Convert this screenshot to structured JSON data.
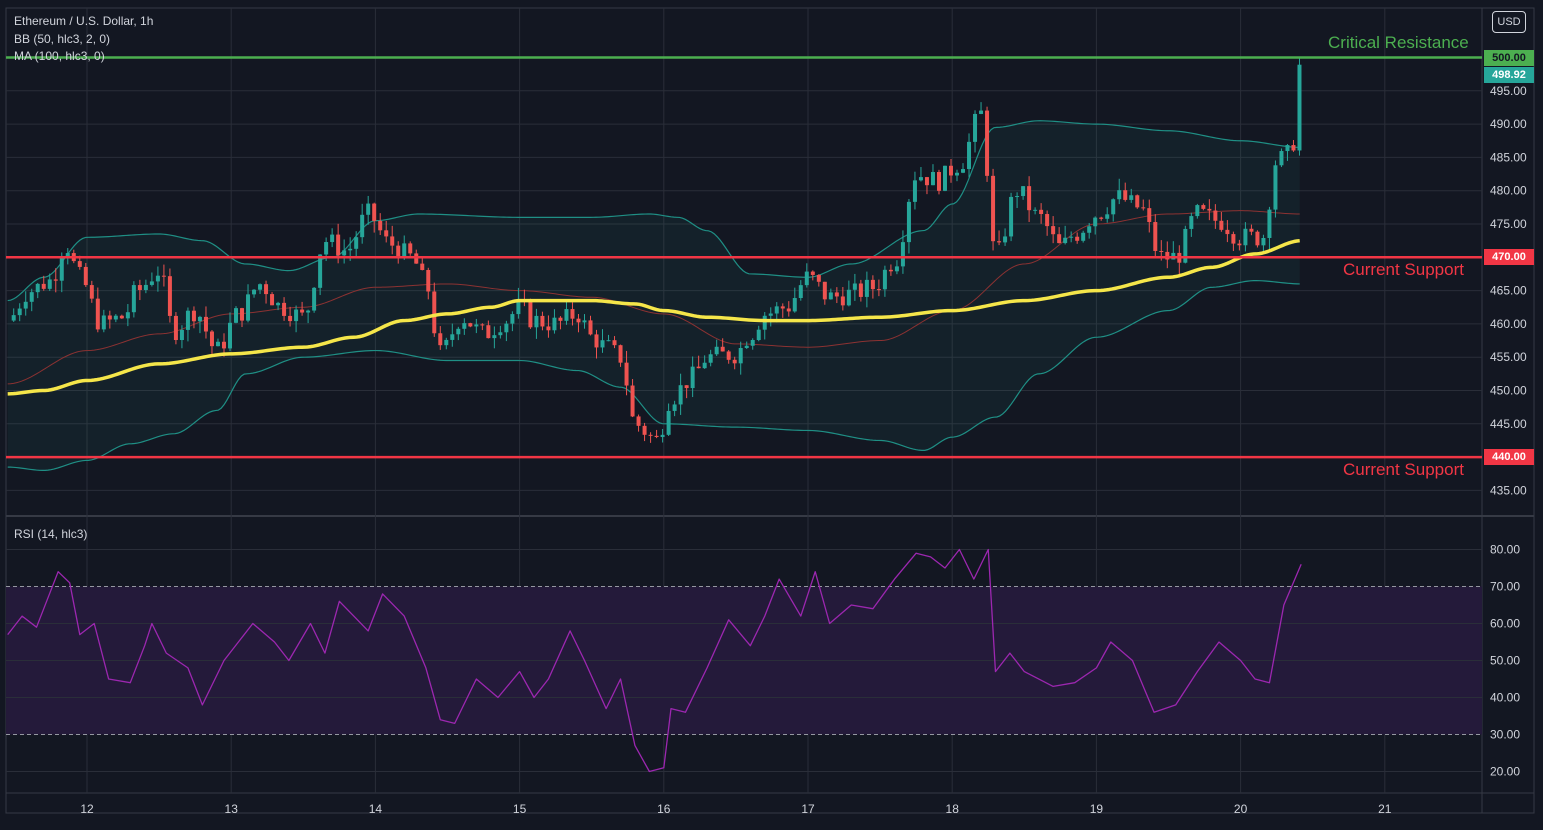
{
  "header": {
    "title": "Ethereum / U.S. Dollar, 1h",
    "bb_label": "BB (50, hlc3, 2, 0)",
    "ma_label": "MA (100, hlc3, 0)",
    "rsi_label": "RSI (14, hlc3)",
    "currency_button": "USD"
  },
  "annotations": {
    "critical_resistance": "Critical Resistance",
    "support_470": "Current Support",
    "support_440": "Current Support"
  },
  "price_tags": {
    "resistance": "500.00",
    "last": "498.92",
    "support_470": "470.00",
    "support_440": "440.00"
  },
  "colors": {
    "background": "#131722",
    "grid": "#2a2e39",
    "bull": "#26a69a",
    "bear": "#ef5350",
    "ma": "#f5e64a",
    "bb_band": "#1f8f85",
    "bb_basis": "#8c3232",
    "resistance_line": "#4caf50",
    "support_line": "#f23645",
    "rsi_line": "#9c27b0",
    "rsi_fill": "#241a3a",
    "last_tag": "#26a69a"
  },
  "chart_data": [
    {
      "type": "candlestick",
      "title": "Ethereum / U.S. Dollar, 1h",
      "x_ticks": [
        "12",
        "13",
        "14",
        "15",
        "16",
        "17",
        "18",
        "19",
        "20",
        "21"
      ],
      "y_ticks": [
        "435.00",
        "440.00",
        "445.00",
        "450.00",
        "455.00",
        "460.00",
        "465.00",
        "470.00",
        "475.00",
        "480.00",
        "485.00",
        "490.00",
        "495.00",
        "500.00"
      ],
      "ylim": [
        430.5,
        504.5
      ],
      "x_range_days": [
        11.45,
        21.7
      ],
      "horizontal_levels": [
        {
          "value": 500.0,
          "label": "Critical Resistance",
          "color": "#4caf50"
        },
        {
          "value": 470.0,
          "label": "Current Support",
          "color": "#f23645"
        },
        {
          "value": 440.0,
          "label": "Current Support",
          "color": "#f23645"
        }
      ],
      "last_price": 498.92,
      "close_anchors": [
        [
          11.45,
          460.5
        ],
        [
          11.6,
          465.0
        ],
        [
          11.75,
          466.5
        ],
        [
          11.85,
          472.0
        ],
        [
          11.95,
          467.0
        ],
        [
          12.1,
          460.0
        ],
        [
          12.25,
          461.0
        ],
        [
          12.35,
          465.0
        ],
        [
          12.5,
          468.0
        ],
        [
          12.6,
          459.0
        ],
        [
          12.75,
          462.0
        ],
        [
          12.9,
          456.0
        ],
        [
          13.05,
          461.5
        ],
        [
          13.2,
          466.0
        ],
        [
          13.35,
          462.5
        ],
        [
          13.5,
          461.0
        ],
        [
          13.65,
          472.5
        ],
        [
          13.8,
          471.0
        ],
        [
          13.95,
          476.5
        ],
        [
          14.1,
          472.0
        ],
        [
          14.25,
          470.0
        ],
        [
          14.35,
          466.0
        ],
        [
          14.45,
          455.5
        ],
        [
          14.6,
          461.0
        ],
        [
          14.75,
          458.5
        ],
        [
          14.9,
          460.5
        ],
        [
          15.0,
          462.5
        ],
        [
          15.1,
          460.5
        ],
        [
          15.25,
          460.0
        ],
        [
          15.4,
          461.5
        ],
        [
          15.5,
          458.0
        ],
        [
          15.6,
          456.5
        ],
        [
          15.7,
          455.0
        ],
        [
          15.8,
          445.0
        ],
        [
          15.95,
          442.5
        ],
        [
          16.05,
          449.0
        ],
        [
          16.2,
          452.0
        ],
        [
          16.3,
          455.0
        ],
        [
          16.5,
          455.5
        ],
        [
          16.6,
          458.5
        ],
        [
          16.7,
          461.5
        ],
        [
          16.85,
          462.5
        ],
        [
          17.0,
          467.0
        ],
        [
          17.15,
          464.0
        ],
        [
          17.3,
          464.5
        ],
        [
          17.45,
          465.5
        ],
        [
          17.6,
          469.5
        ],
        [
          17.75,
          482.5
        ],
        [
          17.9,
          481.5
        ],
        [
          18.05,
          484.0
        ],
        [
          18.2,
          491.5
        ],
        [
          18.3,
          470.0
        ],
        [
          18.45,
          480.0
        ],
        [
          18.6,
          476.0
        ],
        [
          18.75,
          471.5
        ],
        [
          18.85,
          473.5
        ],
        [
          19.0,
          476.5
        ],
        [
          19.15,
          479.0
        ],
        [
          19.3,
          477.5
        ],
        [
          19.45,
          470.0
        ],
        [
          19.55,
          470.0
        ],
        [
          19.7,
          476.5
        ],
        [
          19.85,
          475.5
        ],
        [
          20.0,
          473.0
        ],
        [
          20.15,
          473.0
        ],
        [
          20.25,
          484.5
        ],
        [
          20.35,
          485.5
        ],
        [
          20.42,
          498.92
        ]
      ],
      "ma100_anchors": [
        [
          11.45,
          449.5
        ],
        [
          11.7,
          450.0
        ],
        [
          12.0,
          451.5
        ],
        [
          12.5,
          454.0
        ],
        [
          13.0,
          455.5
        ],
        [
          13.5,
          456.5
        ],
        [
          13.85,
          458.0
        ],
        [
          14.2,
          460.5
        ],
        [
          14.5,
          461.5
        ],
        [
          14.8,
          462.5
        ],
        [
          15.0,
          463.5
        ],
        [
          15.5,
          463.5
        ],
        [
          15.8,
          463.0
        ],
        [
          16.0,
          462.0
        ],
        [
          16.3,
          461.0
        ],
        [
          16.7,
          460.5
        ],
        [
          17.0,
          460.5
        ],
        [
          17.5,
          461.0
        ],
        [
          18.0,
          462.0
        ],
        [
          18.5,
          463.5
        ],
        [
          19.0,
          465.0
        ],
        [
          19.5,
          467.0
        ],
        [
          19.8,
          468.5
        ],
        [
          20.1,
          470.5
        ],
        [
          20.42,
          472.5
        ]
      ],
      "bb_upper_anchors": [
        [
          11.45,
          463.5
        ],
        [
          11.7,
          467.0
        ],
        [
          12.0,
          473.0
        ],
        [
          12.5,
          473.5
        ],
        [
          12.8,
          472.5
        ],
        [
          13.1,
          469.0
        ],
        [
          13.4,
          468.0
        ],
        [
          13.7,
          470.0
        ],
        [
          14.0,
          475.5
        ],
        [
          14.3,
          476.5
        ],
        [
          15.0,
          476.0
        ],
        [
          15.5,
          476.0
        ],
        [
          15.9,
          476.5
        ],
        [
          16.1,
          476.0
        ],
        [
          16.3,
          474.0
        ],
        [
          16.6,
          467.5
        ],
        [
          17.0,
          467.0
        ],
        [
          17.3,
          469.0
        ],
        [
          17.8,
          474.0
        ],
        [
          18.0,
          478.0
        ],
        [
          18.3,
          489.5
        ],
        [
          18.6,
          490.5
        ],
        [
          19.0,
          490.0
        ],
        [
          19.5,
          489.0
        ],
        [
          20.0,
          487.5
        ],
        [
          20.42,
          486.5
        ]
      ],
      "bb_lower_anchors": [
        [
          11.45,
          438.5
        ],
        [
          11.7,
          438.0
        ],
        [
          12.0,
          439.5
        ],
        [
          12.3,
          442.0
        ],
        [
          12.6,
          443.5
        ],
        [
          12.9,
          447.0
        ],
        [
          13.1,
          452.5
        ],
        [
          13.5,
          455.0
        ],
        [
          14.0,
          456.0
        ],
        [
          14.5,
          454.5
        ],
        [
          15.0,
          454.5
        ],
        [
          15.4,
          453.0
        ],
        [
          15.7,
          450.5
        ],
        [
          16.0,
          445.0
        ],
        [
          16.5,
          444.5
        ],
        [
          17.0,
          444.0
        ],
        [
          17.5,
          442.5
        ],
        [
          17.8,
          441.0
        ],
        [
          18.0,
          443.0
        ],
        [
          18.3,
          446.0
        ],
        [
          18.6,
          452.5
        ],
        [
          19.0,
          458.0
        ],
        [
          19.5,
          462.0
        ],
        [
          19.8,
          465.5
        ],
        [
          20.1,
          466.5
        ],
        [
          20.42,
          466.0
        ]
      ],
      "bb_basis_anchors": [
        [
          11.45,
          451.0
        ],
        [
          12.0,
          456.0
        ],
        [
          12.5,
          458.5
        ],
        [
          13.0,
          461.5
        ],
        [
          13.5,
          462.5
        ],
        [
          14.0,
          465.5
        ],
        [
          14.5,
          466.0
        ],
        [
          15.0,
          465.0
        ],
        [
          15.5,
          464.0
        ],
        [
          16.0,
          461.5
        ],
        [
          16.5,
          457.0
        ],
        [
          17.0,
          456.5
        ],
        [
          17.5,
          457.5
        ],
        [
          18.0,
          462.0
        ],
        [
          18.5,
          469.0
        ],
        [
          19.0,
          475.0
        ],
        [
          19.5,
          476.5
        ],
        [
          20.0,
          477.0
        ],
        [
          20.42,
          476.5
        ]
      ]
    },
    {
      "type": "line",
      "title": "RSI (14, hlc3)",
      "y_ticks": [
        "20.00",
        "30.00",
        "40.00",
        "50.00",
        "60.00",
        "70.00",
        "80.00"
      ],
      "ylim": [
        13,
        86
      ],
      "bands": [
        30,
        70
      ],
      "x": [
        11.45,
        11.55,
        11.65,
        11.8,
        11.88,
        11.95,
        12.05,
        12.15,
        12.3,
        12.4,
        12.45,
        12.55,
        12.7,
        12.8,
        12.95,
        13.05,
        13.15,
        13.3,
        13.4,
        13.55,
        13.65,
        13.75,
        13.85,
        13.95,
        14.05,
        14.2,
        14.35,
        14.45,
        14.55,
        14.7,
        14.85,
        15.0,
        15.1,
        15.2,
        15.35,
        15.45,
        15.6,
        15.7,
        15.8,
        15.9,
        16.0,
        16.05,
        16.15,
        16.3,
        16.45,
        16.6,
        16.7,
        16.8,
        16.95,
        17.05,
        17.15,
        17.3,
        17.45,
        17.6,
        17.75,
        17.85,
        17.95,
        18.05,
        18.15,
        18.25,
        18.3,
        18.4,
        18.5,
        18.7,
        18.85,
        19.0,
        19.1,
        19.25,
        19.4,
        19.55,
        19.7,
        19.85,
        20.0,
        20.1,
        20.2,
        20.3,
        20.42
      ],
      "values": [
        57,
        62,
        59,
        74,
        71,
        57,
        60,
        45,
        44,
        54,
        60,
        52,
        48,
        38,
        50,
        55,
        60,
        55,
        50,
        60,
        52,
        66,
        62,
        58,
        68,
        62,
        48,
        34,
        33,
        45,
        40,
        47,
        40,
        45,
        58,
        50,
        37,
        45,
        27,
        20,
        21,
        37,
        36,
        48,
        61,
        54,
        62,
        72,
        62,
        74,
        60,
        65,
        64,
        72,
        79,
        78,
        75,
        80,
        72,
        80,
        47,
        52,
        47,
        43,
        44,
        48,
        55,
        50,
        36,
        38,
        47,
        55,
        50,
        45,
        44,
        65,
        76
      ]
    }
  ]
}
